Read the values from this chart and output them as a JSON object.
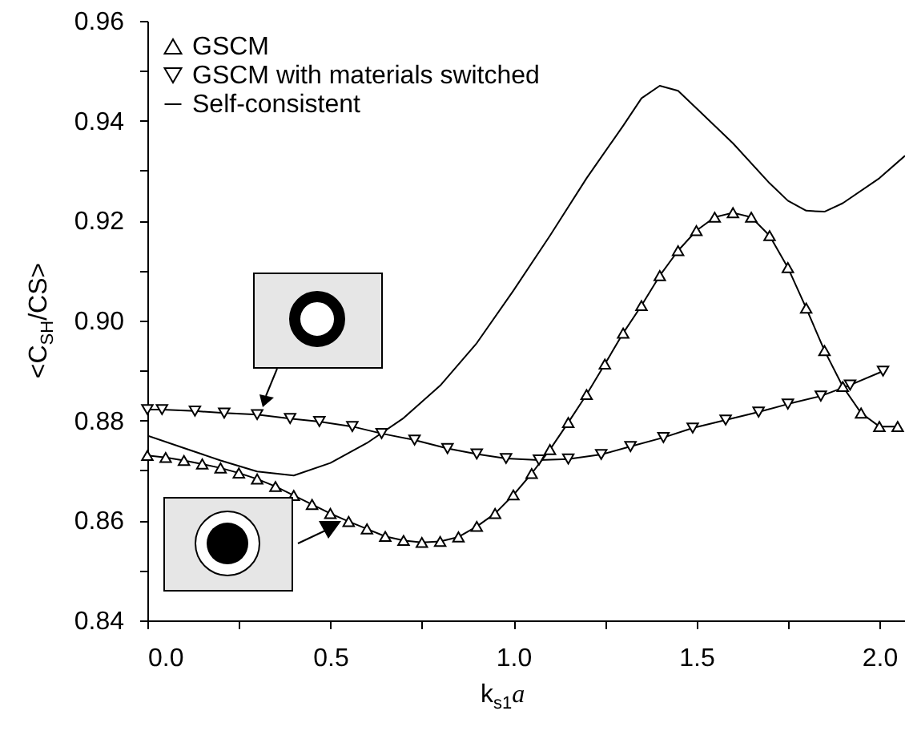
{
  "chart_data": {
    "type": "line",
    "xlabel": "k$_{s1}$a",
    "ylabel": "<C$_{SH}$/CS>",
    "xlim": [
      0,
      2.07
    ],
    "ylim": [
      0.84,
      0.96
    ],
    "xticks": [
      {
        "value": 0,
        "label": "0.0"
      },
      {
        "value": 0.25,
        "label": null
      },
      {
        "value": 0.5,
        "label": "0.5"
      },
      {
        "value": 0.75,
        "label": null
      },
      {
        "value": 1,
        "label": "1.0"
      },
      {
        "value": 1.25,
        "label": null
      },
      {
        "value": 1.5,
        "label": "1.5"
      },
      {
        "value": 1.75,
        "label": null
      },
      {
        "value": 2,
        "label": "2.0"
      }
    ],
    "yticks": [
      0.84,
      {
        "value": 0.85,
        "label": null
      },
      0.86,
      {
        "value": 0.87,
        "label": null
      },
      0.88,
      {
        "value": 0.89,
        "label": null
      },
      {
        "value": 0.9,
        "label": "0.90"
      },
      {
        "value": 0.91,
        "label": null
      },
      0.92,
      {
        "value": 0.93,
        "label": null
      },
      0.94,
      {
        "value": 0.95,
        "label": null
      },
      0.96
    ],
    "legend": "top left",
    "grid": false,
    "series": [
      {
        "name": "GSCM",
        "color": "#000000",
        "marker": "triangle",
        "x": [
          0,
          0.05,
          0.1,
          0.15,
          0.2,
          0.25,
          0.3,
          0.35,
          0.4,
          0.45,
          0.5,
          0.55,
          0.6,
          0.65,
          0.7,
          0.75,
          0.8,
          0.85,
          0.9,
          0.95,
          1.0,
          1.05,
          1.1,
          1.15,
          1.2,
          1.25,
          1.3,
          1.35,
          1.4,
          1.45,
          1.5,
          1.55,
          1.6,
          1.65,
          1.7,
          1.75,
          1.8,
          1.85,
          1.9,
          1.95,
          2.0,
          2.05
        ],
        "values": [
          0.873,
          0.8726,
          0.872,
          0.8713,
          0.8705,
          0.8695,
          0.8683,
          0.8668,
          0.865,
          0.8632,
          0.8614,
          0.8598,
          0.8583,
          0.8568,
          0.856,
          0.8556,
          0.8558,
          0.8567,
          0.8588,
          0.8614,
          0.8651,
          0.8694,
          0.8742,
          0.8796,
          0.8852,
          0.8913,
          0.8975,
          0.903,
          0.909,
          0.914,
          0.918,
          0.9207,
          0.9216,
          0.9207,
          0.917,
          0.9106,
          0.9025,
          0.894,
          0.8868,
          0.8815,
          0.8788,
          0.8788
        ]
      },
      {
        "name": "GSCM with materials switched",
        "color": "#000000",
        "marker": "triangle-down",
        "x": [
          0,
          0.04,
          0.13,
          0.21,
          0.3,
          0.39,
          0.47,
          0.56,
          0.64,
          0.73,
          0.82,
          0.9,
          0.98,
          1.07,
          1.15,
          1.24,
          1.32,
          1.41,
          1.49,
          1.58,
          1.67,
          1.75,
          1.84,
          1.92,
          2.01
        ],
        "values": [
          0.8822,
          0.8822,
          0.8819,
          0.8815,
          0.8812,
          0.8804,
          0.8798,
          0.8788,
          0.8774,
          0.8761,
          0.8744,
          0.8733,
          0.8724,
          0.8721,
          0.8723,
          0.8732,
          0.8748,
          0.8766,
          0.8785,
          0.8801,
          0.8817,
          0.8833,
          0.8849,
          0.8871,
          0.8899
        ]
      },
      {
        "name": "Self-consistent",
        "color": "#000000",
        "marker": "none",
        "x": [
          0,
          0.1,
          0.2,
          0.3,
          0.4,
          0.5,
          0.6,
          0.7,
          0.8,
          0.9,
          1.0,
          1.1,
          1.2,
          1.3,
          1.35,
          1.4,
          1.45,
          1.5,
          1.6,
          1.7,
          1.75,
          1.8,
          1.85,
          1.9,
          2.0,
          2.07
        ],
        "values": [
          0.877,
          0.8745,
          0.872,
          0.8698,
          0.869,
          0.8715,
          0.8755,
          0.8805,
          0.887,
          0.8955,
          0.906,
          0.917,
          0.9285,
          0.939,
          0.9445,
          0.947,
          0.946,
          0.9425,
          0.9355,
          0.9275,
          0.924,
          0.922,
          0.9218,
          0.9235,
          0.9285,
          0.933
        ]
      }
    ]
  }
}
